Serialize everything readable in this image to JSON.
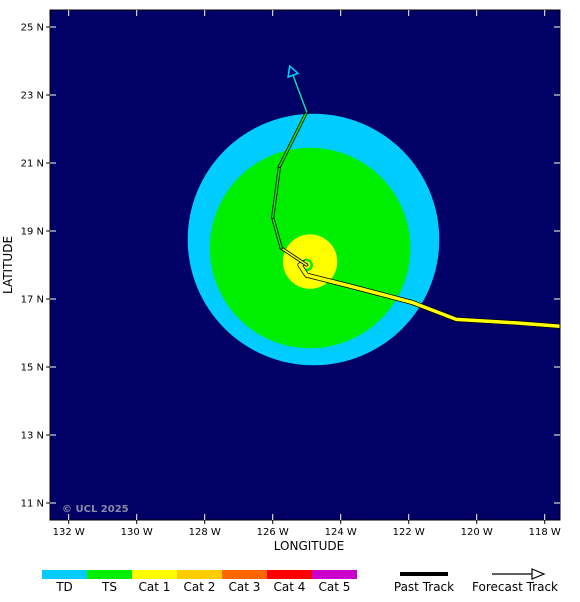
{
  "map": {
    "lon_range": [
      -132.55,
      -117.55
    ],
    "lat_range": [
      10.5,
      25.5
    ],
    "background_color": "#000066",
    "x_axis_label": "LONGITUDE",
    "y_axis_label": "LATITUDE",
    "x_ticks": [
      {
        "lon": -132,
        "label": "132 W"
      },
      {
        "lon": -130,
        "label": "130 W"
      },
      {
        "lon": -128,
        "label": "128 W"
      },
      {
        "lon": -126,
        "label": "126 W"
      },
      {
        "lon": -124,
        "label": "124 W"
      },
      {
        "lon": -122,
        "label": "122 W"
      },
      {
        "lon": -120,
        "label": "120 W"
      },
      {
        "lon": -118,
        "label": "118 W"
      }
    ],
    "y_ticks": [
      {
        "lat": 25,
        "label": "25 N"
      },
      {
        "lat": 23,
        "label": "23 N"
      },
      {
        "lat": 21,
        "label": "21 N"
      },
      {
        "lat": 19,
        "label": "19 N"
      },
      {
        "lat": 17,
        "label": "17 N"
      },
      {
        "lat": 15,
        "label": "15 N"
      },
      {
        "lat": 13,
        "label": "13 N"
      },
      {
        "lat": 11,
        "label": "11 N"
      }
    ],
    "copyright": "© UCL 2025"
  },
  "wind_field": {
    "td_circle": {
      "lon": -124.8,
      "lat": 18.75,
      "radius_deg": 3.7,
      "color": "#00ccff"
    },
    "ts_circle": {
      "lon": -124.9,
      "lat": 18.5,
      "radius_deg": 2.95,
      "color": "#00ee00"
    },
    "cat1_circle": {
      "lon": -124.9,
      "lat": 18.1,
      "radius_deg": 0.8,
      "color": "#ffff00"
    },
    "eye": {
      "lon": -125.0,
      "lat": 18.0
    }
  },
  "tracks": {
    "past_track": [
      {
        "lon": -117.55,
        "lat": 16.2
      },
      {
        "lon": -118.9,
        "lat": 16.3
      },
      {
        "lon": -120.6,
        "lat": 16.4
      },
      {
        "lon": -121.9,
        "lat": 16.9
      },
      {
        "lon": -123.8,
        "lat": 17.4
      },
      {
        "lon": -125.0,
        "lat": 17.7
      },
      {
        "lon": -125.2,
        "lat": 18.0
      },
      {
        "lon": -125.0,
        "lat": 18.1
      }
    ],
    "past_track_color": "#ffff00",
    "forecast_track": [
      {
        "lon": -125.0,
        "lat": 18.0
      },
      {
        "lon": -125.75,
        "lat": 18.5
      },
      {
        "lon": -126.0,
        "lat": 19.4
      },
      {
        "lon": -125.8,
        "lat": 20.9
      },
      {
        "lon": -125.0,
        "lat": 22.5
      },
      {
        "lon": -125.5,
        "lat": 23.85
      }
    ],
    "forecast_colors": [
      "#ffff00",
      "#00ee00",
      "#00ee00",
      "#00ee00",
      "#00ccff"
    ]
  },
  "legend": {
    "categories": [
      {
        "label": "TD",
        "color": "#00ccff"
      },
      {
        "label": "TS",
        "color": "#00ee00"
      },
      {
        "label": "Cat 1",
        "color": "#ffff00"
      },
      {
        "label": "Cat 2",
        "color": "#ffcc00"
      },
      {
        "label": "Cat 3",
        "color": "#ff6600"
      },
      {
        "label": "Cat 4",
        "color": "#ff0000"
      },
      {
        "label": "Cat 5",
        "color": "#cc00cc"
      }
    ],
    "past_track_label": "Past Track",
    "forecast_track_label": "Forecast Track"
  }
}
